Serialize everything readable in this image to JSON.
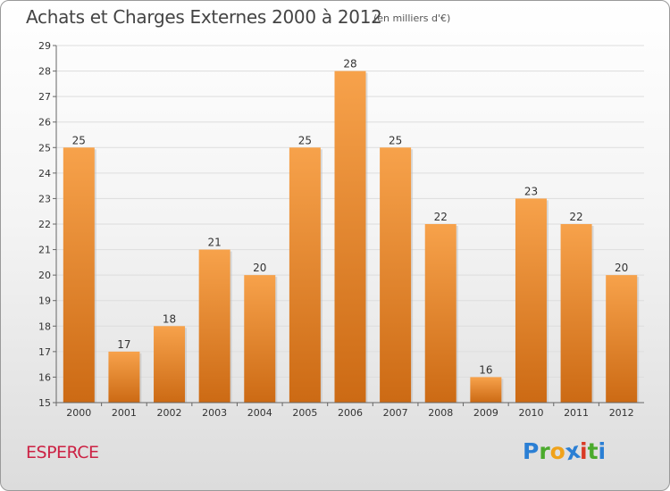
{
  "header": {
    "title": "Achats et Charges Externes 2000 à 2012",
    "unit": "(en milliers d'€)"
  },
  "footer": {
    "commune": "ESPERCE",
    "logo_letters": [
      "P",
      "r",
      "o",
      "x",
      "i",
      "t",
      "i"
    ],
    "logo_colors": [
      "#2b7fd4",
      "#4aaa2c",
      "#f0a21a",
      "#2b7fd4",
      "#d93a26",
      "#4aaa2c",
      "#2b7fd4"
    ]
  },
  "chart_data": {
    "type": "bar",
    "categories": [
      "2000",
      "2001",
      "2002",
      "2003",
      "2004",
      "2005",
      "2006",
      "2007",
      "2008",
      "2009",
      "2010",
      "2011",
      "2012"
    ],
    "values": [
      25,
      17,
      18,
      21,
      20,
      25,
      28,
      25,
      22,
      16,
      23,
      22,
      20
    ],
    "ylim": [
      15,
      29
    ],
    "yticks": [
      "15",
      "16",
      "17",
      "18",
      "19",
      "20",
      "21",
      "22",
      "23",
      "24",
      "25",
      "26",
      "27",
      "28",
      "29"
    ],
    "grid": true,
    "bar_color_top": "#f7a24b",
    "bar_color_bottom": "#cc6a14"
  }
}
